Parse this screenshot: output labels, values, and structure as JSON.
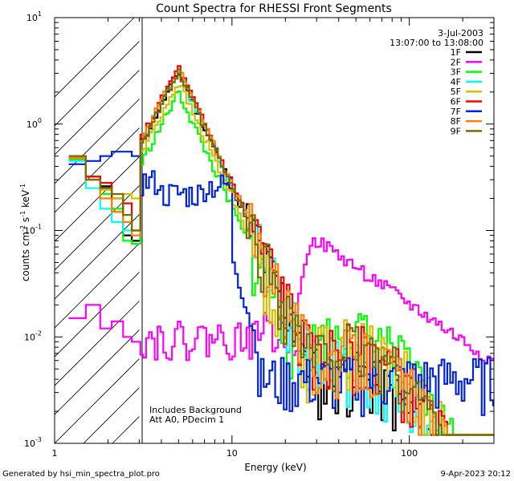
{
  "chart_data": {
    "type": "line",
    "title": "Count Spectra for RHESSI Front Segments",
    "xlabel": "Energy (keV)",
    "ylabel_parts": {
      "a": "counts cm",
      "b": "-2",
      "c": " s",
      "d": "-1",
      "e": " keV",
      "f": "-1"
    },
    "xscale": "log",
    "yscale": "log",
    "xlim": [
      1.0,
      300
    ],
    "ylim": [
      0.001,
      10
    ],
    "x_ticks": [
      {
        "value": 1,
        "label": "1"
      },
      {
        "value": 10,
        "label": "10"
      },
      {
        "value": 100,
        "label": "100"
      }
    ],
    "y_ticks": [
      {
        "value": 0.001,
        "base": "10",
        "exp": "-3"
      },
      {
        "value": 0.01,
        "base": "10",
        "exp": "-2"
      },
      {
        "value": 0.1,
        "base": "10",
        "exp": "-1"
      },
      {
        "value": 1,
        "base": "10",
        "exp": "0"
      },
      {
        "value": 10,
        "base": "10",
        "exp": "1"
      }
    ],
    "hatched_region_keV": [
      1.0,
      3.0
    ],
    "date": "3-Jul-2003",
    "time_range": "13:07:00 to 13:08:00",
    "annotations": [
      "Includes Background",
      "Att A0, PDecim 1"
    ],
    "footer_left": "Generated by hsi_min_spectra_plot.pro",
    "footer_right": "9-Apr-2023 20:12",
    "series": [
      {
        "name": "1F",
        "color": "#000000",
        "low": [
          0.48,
          0.32,
          0.26,
          0.2,
          0.09,
          0.08,
          0.2
        ],
        "peak": 3.1,
        "hump": 0.0045,
        "seed": 11
      },
      {
        "name": "2F",
        "color": "#ff00ff",
        "low": [
          0.015,
          0.02,
          0.012,
          0.014,
          0.01,
          0.009,
          0.009
        ],
        "peak": 0,
        "hump": 0,
        "seed": 22
      },
      {
        "name": "3F",
        "color": "#00ff00",
        "low": [
          0.46,
          0.3,
          0.22,
          0.16,
          0.08,
          0.075,
          0.18
        ],
        "peak": 2.0,
        "hump": 0.011,
        "seed": 33
      },
      {
        "name": "4F",
        "color": "#00ffff",
        "low": [
          0.45,
          0.25,
          0.16,
          0.12,
          0.1,
          0.09,
          0.2
        ],
        "peak": 3.2,
        "hump": 0.006,
        "seed": 44
      },
      {
        "name": "5F",
        "color": "#d4c000",
        "low": [
          0.48,
          0.3,
          0.24,
          0.2,
          0.22,
          0.2,
          0.3
        ],
        "peak": 2.5,
        "hump": 0.009,
        "seed": 55
      },
      {
        "name": "6F",
        "color": "#ff0000",
        "low": [
          0.5,
          0.32,
          0.28,
          0.15,
          0.18,
          0.1,
          0.3
        ],
        "peak": 3.4,
        "hump": 0.008,
        "seed": 66
      },
      {
        "name": "7F",
        "color": "#0022dd",
        "low": [
          0.42,
          0.45,
          0.5,
          0.55,
          0.55,
          0.5,
          0.48
        ],
        "peak": 0,
        "hump": 0.004,
        "seed": 77
      },
      {
        "name": "8F",
        "color": "#ff8000",
        "low": [
          0.48,
          0.3,
          0.2,
          0.15,
          0.12,
          0.09,
          0.22
        ],
        "peak": 3.3,
        "hump": 0.007,
        "seed": 88
      },
      {
        "name": "9F",
        "color": "#7a6a00",
        "low": [
          0.5,
          0.3,
          0.25,
          0.22,
          0.14,
          0.1,
          0.25
        ],
        "peak": 3.1,
        "hump": 0.008,
        "seed": 99
      }
    ]
  }
}
